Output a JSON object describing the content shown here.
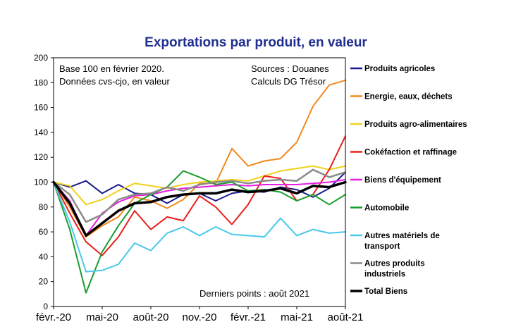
{
  "chart_data": {
    "type": "line",
    "title": "Exportations par produit, en valeur",
    "annotations": {
      "base_line1": "Base 100 en février 2020.",
      "base_line2": "Données cvs-cjo, en valeur",
      "source_line1": "Sources : Douanes",
      "source_line2": "Calculs DG Trésor",
      "last_points": "Derniers points : août 2021"
    },
    "x_tick_labels": [
      "févr.-20",
      "mai-20",
      "août-20",
      "nov.-20",
      "févr.-21",
      "mai-21",
      "août-21"
    ],
    "x_tick_indices": [
      0,
      3,
      6,
      9,
      12,
      15,
      18
    ],
    "n_points": 19,
    "ylim": [
      0,
      200
    ],
    "y_ticks": [
      0,
      20,
      40,
      60,
      80,
      100,
      120,
      140,
      160,
      180,
      200
    ],
    "grid": false,
    "legend_position": "right",
    "series": [
      {
        "name": "Produits agricoles",
        "color": "#1a1a8c",
        "width": 2,
        "values": [
          100,
          96,
          101,
          91,
          98,
          91,
          90,
          83,
          90,
          91,
          85,
          91,
          93,
          92,
          96,
          94,
          88,
          95,
          108
        ]
      },
      {
        "name": "Energie, eaux, déchets",
        "color": "#f28a1e",
        "width": 2,
        "values": [
          100,
          80,
          56,
          65,
          72,
          88,
          85,
          79,
          86,
          99,
          99,
          127,
          113,
          117,
          119,
          132,
          161,
          178,
          182
        ]
      },
      {
        "name": "Produits agro-alimentaires",
        "color": "#f0d21a",
        "width": 2,
        "values": [
          100,
          97,
          82,
          86,
          93,
          99,
          97,
          95,
          98,
          100,
          101,
          102,
          101,
          105,
          109,
          111,
          113,
          110,
          113
        ]
      },
      {
        "name": "Cokéfaction et raffinage",
        "color": "#e8201c",
        "width": 2,
        "values": [
          100,
          75,
          52,
          41,
          56,
          77,
          62,
          72,
          69,
          89,
          80,
          66,
          82,
          105,
          103,
          85,
          90,
          110,
          137
        ]
      },
      {
        "name": "Biens d'équipement",
        "color": "#e81ee0",
        "width": 2,
        "values": [
          100,
          85,
          57,
          75,
          84,
          89,
          90,
          93,
          95,
          96,
          97,
          98,
          97,
          98,
          98,
          98,
          99,
          100,
          102
        ]
      },
      {
        "name": "Automobile",
        "color": "#1a9e2e",
        "width": 2,
        "values": [
          100,
          62,
          11,
          44,
          65,
          83,
          90,
          96,
          109,
          104,
          98,
          100,
          93,
          94,
          92,
          85,
          90,
          82,
          90
        ]
      },
      {
        "name": "Autres matériels de transport",
        "color": "#48c8ec",
        "width": 2,
        "values": [
          100,
          68,
          28,
          29,
          34,
          51,
          45,
          59,
          64,
          57,
          64,
          58,
          57,
          56,
          71,
          57,
          62,
          59,
          60
        ]
      },
      {
        "name": "Autres produits industriels",
        "color": "#8a8a8a",
        "width": 2.5,
        "values": [
          100,
          90,
          68,
          74,
          86,
          90,
          91,
          96,
          93,
          98,
          100,
          101,
          99,
          101,
          102,
          101,
          110,
          104,
          108
        ]
      },
      {
        "name": "Total Biens",
        "color": "#000000",
        "width": 3.5,
        "values": [
          100,
          83,
          57,
          67,
          77,
          83,
          84,
          88,
          90,
          91,
          91,
          94,
          92,
          93,
          95,
          91,
          97,
          96,
          100
        ]
      }
    ]
  }
}
